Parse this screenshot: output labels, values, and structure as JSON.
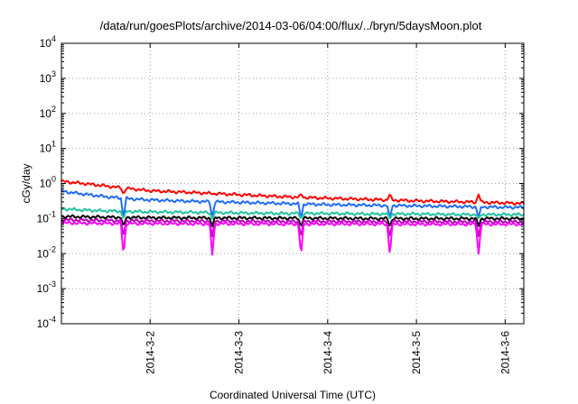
{
  "chart_data": {
    "type": "line",
    "title": "/data/run/goesPlots/archive/2014-03-06/04:00/flux/../bryn/5daysMoon.plot",
    "xlabel": "Coordinated Universal Time (UTC)",
    "ylabel": "cGy/day",
    "yscale": "log",
    "ylim": [
      0.0001,
      10000
    ],
    "xlim": [
      0.0,
      5.21
    ],
    "grid": true,
    "ytick_labels": [
      {
        "mantissa": "10",
        "exp": "-4",
        "value": 0.0001
      },
      {
        "mantissa": "10",
        "exp": "-3",
        "value": 0.001
      },
      {
        "mantissa": "10",
        "exp": "-2",
        "value": 0.01
      },
      {
        "mantissa": "10",
        "exp": "-1",
        "value": 0.1
      },
      {
        "mantissa": "10",
        "exp": "0",
        "value": 1
      },
      {
        "mantissa": "10",
        "exp": "1",
        "value": 10
      },
      {
        "mantissa": "10",
        "exp": "2",
        "value": 100
      },
      {
        "mantissa": "10",
        "exp": "3",
        "value": 1000
      },
      {
        "mantissa": "10",
        "exp": "4",
        "value": 10000
      }
    ],
    "xtick_labels": [
      {
        "label": "2014-3-2",
        "value": 1.0
      },
      {
        "label": "2014-3-3",
        "value": 2.0
      },
      {
        "label": "2014-3-4",
        "value": 3.0
      },
      {
        "label": "2014-3-5",
        "value": 4.0
      },
      {
        "label": "2014-3-6",
        "value": 5.0
      }
    ],
    "dip_times": [
      0.7,
      1.7,
      2.7,
      3.7,
      4.7
    ],
    "series": [
      {
        "color": "#ff0000",
        "x": [
          0.0,
          0.25,
          0.5,
          0.75,
          1.0,
          1.5,
          2.0,
          2.5,
          3.0,
          3.5,
          4.0,
          4.5,
          5.0,
          5.21
        ],
        "y": [
          1.15,
          1.0,
          0.85,
          0.72,
          0.62,
          0.55,
          0.48,
          0.42,
          0.38,
          0.35,
          0.32,
          0.3,
          0.28,
          0.27
        ],
        "dip_min": 0.5
      },
      {
        "color": "#1e6bff",
        "x": [
          0.0,
          0.25,
          0.5,
          0.75,
          1.0,
          1.5,
          2.0,
          2.5,
          3.0,
          3.5,
          4.0,
          4.5,
          5.0,
          5.21
        ],
        "y": [
          0.6,
          0.5,
          0.42,
          0.37,
          0.34,
          0.31,
          0.29,
          0.27,
          0.25,
          0.24,
          0.23,
          0.22,
          0.21,
          0.21
        ],
        "dip_min": 0.1
      },
      {
        "color": "#1fc4a0",
        "x": [
          0.0,
          0.25,
          0.5,
          0.75,
          1.0,
          1.5,
          2.0,
          2.5,
          3.0,
          3.5,
          4.0,
          4.5,
          5.0,
          5.21
        ],
        "y": [
          0.19,
          0.175,
          0.165,
          0.16,
          0.155,
          0.15,
          0.145,
          0.14,
          0.14,
          0.135,
          0.135,
          0.13,
          0.13,
          0.13
        ],
        "dip_min": 0.1
      },
      {
        "color": "#000000",
        "x": [
          0.0,
          0.25,
          0.5,
          0.75,
          1.0,
          1.5,
          2.0,
          2.5,
          3.0,
          3.5,
          4.0,
          4.5,
          5.0,
          5.21
        ],
        "y": [
          0.115,
          0.112,
          0.11,
          0.108,
          0.106,
          0.105,
          0.104,
          0.103,
          0.102,
          0.1,
          0.1,
          0.1,
          0.1,
          0.1
        ],
        "dip_min": 0.06
      },
      {
        "color": "#c000c0",
        "x": [
          0.0,
          0.25,
          0.5,
          0.75,
          1.0,
          1.5,
          2.0,
          2.5,
          3.0,
          3.5,
          4.0,
          4.5,
          5.0,
          5.21
        ],
        "y": [
          0.092,
          0.09,
          0.088,
          0.087,
          0.086,
          0.085,
          0.084,
          0.083,
          0.083,
          0.082,
          0.082,
          0.081,
          0.081,
          0.081
        ],
        "dip_min": 0.03
      },
      {
        "color": "#ff00ff",
        "x": [
          0.0,
          0.25,
          0.5,
          0.75,
          1.0,
          1.5,
          2.0,
          2.5,
          3.0,
          3.5,
          4.0,
          4.5,
          5.0,
          5.21
        ],
        "y": [
          0.075,
          0.074,
          0.073,
          0.072,
          0.072,
          0.071,
          0.071,
          0.07,
          0.07,
          0.07,
          0.069,
          0.069,
          0.069,
          0.069
        ],
        "dip_min": 0.009
      }
    ]
  }
}
